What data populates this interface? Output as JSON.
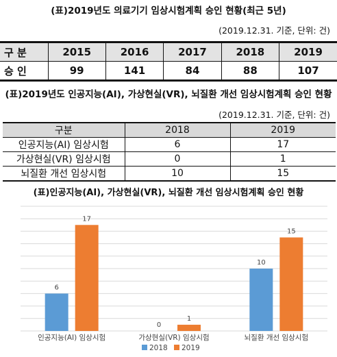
{
  "table1": {
    "title": "(표)2019년도 의료기기 임상시험계획 승인 현황(최근 5년)",
    "note": "(2019.12.31. 기준, 단위: 건)",
    "header_label": "구 분",
    "years": [
      "2015",
      "2016",
      "2017",
      "2018",
      "2019"
    ],
    "row_label": "승 인",
    "values": [
      "99",
      "141",
      "84",
      "88",
      "107"
    ]
  },
  "table2": {
    "title": "(표)2019년도 인공지능(AI), 가상현실(VR), 뇌질환 개선 임상시험계획 승인 현황",
    "note": "(2019.12.31. 기준, 단위: 건)",
    "header_label": "구분",
    "years": [
      "2018",
      "2019"
    ],
    "rows": [
      {
        "label": "인공지능(AI) 임상시험",
        "values": [
          "6",
          "17"
        ]
      },
      {
        "label": "가상현실(VR) 임상시험",
        "values": [
          "0",
          "1"
        ]
      },
      {
        "label": "뇌질환 개선 임상시험",
        "values": [
          "10",
          "15"
        ]
      }
    ]
  },
  "chart_data": {
    "type": "bar",
    "title": "(표)인공지능(AI), 가상현실(VR), 뇌질환 개선 임상시험계획 승인 현황",
    "categories": [
      "인공지능(AI) 임상시험",
      "가상현실(VR) 임상시험",
      "뇌질환 개선 임상시험"
    ],
    "series": [
      {
        "name": "2018",
        "values": [
          6,
          0,
          10
        ],
        "color": "#5b9bd5"
      },
      {
        "name": "2019",
        "values": [
          17,
          1,
          15
        ],
        "color": "#ed7d31"
      }
    ],
    "ylim": [
      0,
      20
    ],
    "grid": true,
    "gridline_step": 2,
    "legend_position": "bottom",
    "show_y_axis_labels": false
  }
}
